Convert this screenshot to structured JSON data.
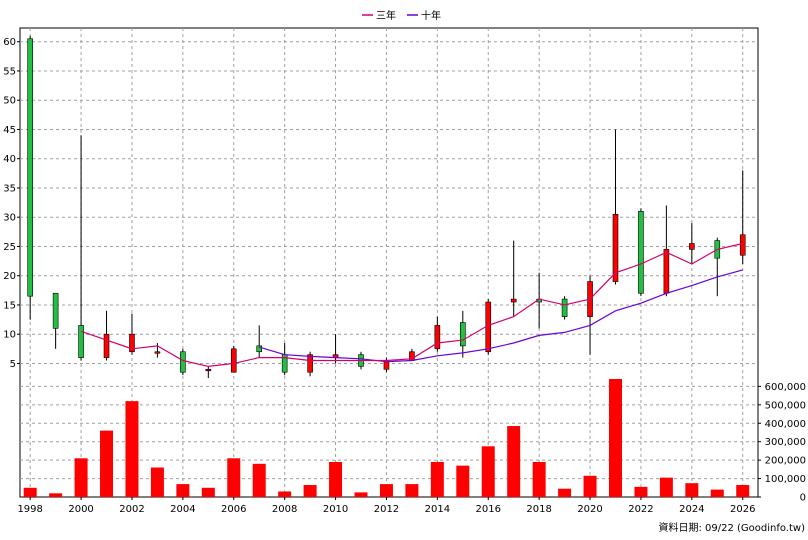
{
  "legend": {
    "ma3_label": "三年",
    "ma10_label": "十年",
    "ma3_color": "#d4006a",
    "ma10_color": "#6a00d4"
  },
  "footer": {
    "source": "資料日期: 09/22  (Goodinfo.tw)"
  },
  "colors": {
    "up": "#ff0000",
    "down": "#22c040",
    "volume": "#ff0000",
    "grid": "#a0a0a0"
  },
  "chart_data": {
    "type": "candlestick",
    "price_axis": {
      "min": 2,
      "max": 62,
      "ticks": [
        5,
        10,
        15,
        20,
        25,
        30,
        35,
        40,
        45,
        50,
        55,
        60
      ],
      "side": "left"
    },
    "volume_axis": {
      "min": 0,
      "max": 640000,
      "ticks": [
        0,
        100000,
        200000,
        300000,
        400000,
        500000,
        600000
      ],
      "tick_labels": [
        "0",
        "100,000",
        "200,000",
        "300,000",
        "400,000",
        "500,000",
        "600,000"
      ],
      "side": "right"
    },
    "x_axis": {
      "min": 1997.6,
      "max": 2026.6,
      "ticks": [
        1998,
        2000,
        2002,
        2004,
        2006,
        2008,
        2010,
        2012,
        2014,
        2016,
        2018,
        2020,
        2022,
        2024,
        2026
      ]
    },
    "grid": true,
    "legend_position": "top-center",
    "candles": [
      {
        "year": 1998,
        "open": 60.5,
        "high": 61,
        "low": 12.5,
        "close": 16.5
      },
      {
        "year": 1999,
        "open": 17,
        "high": 17,
        "low": 7.5,
        "close": 11
      },
      {
        "year": 2000,
        "open": 11.5,
        "high": 44,
        "low": 5.5,
        "close": 6
      },
      {
        "year": 2001,
        "open": 6,
        "high": 14,
        "low": 5.5,
        "close": 10
      },
      {
        "year": 2002,
        "open": 7,
        "high": 13.5,
        "low": 6.5,
        "close": 10
      },
      {
        "year": 2003,
        "open": 7,
        "high": 8.5,
        "low": 6,
        "close": 7
      },
      {
        "year": 2004,
        "open": 7,
        "high": 7.5,
        "low": 3,
        "close": 3.5
      },
      {
        "year": 2005,
        "open": 4,
        "high": 4.5,
        "low": 2.5,
        "close": 4
      },
      {
        "year": 2006,
        "open": 3.5,
        "high": 8,
        "low": 3.5,
        "close": 7.5
      },
      {
        "year": 2007,
        "open": 8,
        "high": 11.5,
        "low": 6,
        "close": 7
      },
      {
        "year": 2008,
        "open": 6.5,
        "high": 8.5,
        "low": 3,
        "close": 3.5
      },
      {
        "year": 2009,
        "open": 3.5,
        "high": 7,
        "low": 2.8,
        "close": 6.5
      },
      {
        "year": 2010,
        "open": 6,
        "high": 10,
        "low": 5,
        "close": 6.5
      },
      {
        "year": 2011,
        "open": 6.5,
        "high": 7,
        "low": 4,
        "close": 4.5
      },
      {
        "year": 2012,
        "open": 4,
        "high": 6,
        "low": 3.5,
        "close": 5.5
      },
      {
        "year": 2013,
        "open": 5.5,
        "high": 7.5,
        "low": 5.5,
        "close": 7
      },
      {
        "year": 2014,
        "open": 7.5,
        "high": 13,
        "low": 7,
        "close": 11.5
      },
      {
        "year": 2015,
        "open": 12,
        "high": 14,
        "low": 6,
        "close": 8
      },
      {
        "year": 2016,
        "open": 7,
        "high": 16,
        "low": 6.5,
        "close": 15.5
      },
      {
        "year": 2017,
        "open": 15.5,
        "high": 26,
        "low": 13,
        "close": 16
      },
      {
        "year": 2018,
        "open": 16,
        "high": 20.5,
        "low": 11,
        "close": 15.5
      },
      {
        "year": 2019,
        "open": 16,
        "high": 16.5,
        "low": 12.5,
        "close": 13
      },
      {
        "year": 2020,
        "open": 13,
        "high": 20,
        "low": 6.5,
        "close": 19
      },
      {
        "year": 2021,
        "open": 19,
        "high": 45,
        "low": 18.5,
        "close": 30.5
      },
      {
        "year": 2022,
        "open": 31,
        "high": 31.5,
        "low": 16.5,
        "close": 17
      },
      {
        "year": 2023,
        "open": 17,
        "high": 32,
        "low": 16.5,
        "close": 24.5
      },
      {
        "year": 2024,
        "open": 24.5,
        "high": 29,
        "low": 22,
        "close": 25.5
      },
      {
        "year": 2025,
        "open": 26,
        "high": 26.5,
        "low": 16.5,
        "close": 23
      },
      {
        "year": 2026,
        "open": 23.5,
        "high": 38,
        "low": 22,
        "close": 27
      }
    ],
    "ma3": [
      {
        "year": 2000,
        "value": 10.5
      },
      {
        "year": 2001,
        "value": 9
      },
      {
        "year": 2002,
        "value": 7.5
      },
      {
        "year": 2003,
        "value": 8
      },
      {
        "year": 2004,
        "value": 5.5
      },
      {
        "year": 2005,
        "value": 4.5
      },
      {
        "year": 2006,
        "value": 5
      },
      {
        "year": 2007,
        "value": 6
      },
      {
        "year": 2008,
        "value": 6
      },
      {
        "year": 2009,
        "value": 5.5
      },
      {
        "year": 2010,
        "value": 5.5
      },
      {
        "year": 2011,
        "value": 5.5
      },
      {
        "year": 2012,
        "value": 5.5
      },
      {
        "year": 2013,
        "value": 5.8
      },
      {
        "year": 2014,
        "value": 8.5
      },
      {
        "year": 2015,
        "value": 9
      },
      {
        "year": 2016,
        "value": 11.5
      },
      {
        "year": 2017,
        "value": 13
      },
      {
        "year": 2018,
        "value": 16
      },
      {
        "year": 2019,
        "value": 15
      },
      {
        "year": 2020,
        "value": 16
      },
      {
        "year": 2021,
        "value": 20.5
      },
      {
        "year": 2022,
        "value": 22
      },
      {
        "year": 2023,
        "value": 24
      },
      {
        "year": 2024,
        "value": 22
      },
      {
        "year": 2025,
        "value": 24.5
      },
      {
        "year": 2026,
        "value": 25.5
      }
    ],
    "ma10": [
      {
        "year": 2007,
        "value": 7.8
      },
      {
        "year": 2008,
        "value": 6.5
      },
      {
        "year": 2009,
        "value": 6.2
      },
      {
        "year": 2010,
        "value": 6
      },
      {
        "year": 2011,
        "value": 5.8
      },
      {
        "year": 2012,
        "value": 5.3
      },
      {
        "year": 2013,
        "value": 5.5
      },
      {
        "year": 2014,
        "value": 6.3
      },
      {
        "year": 2015,
        "value": 6.8
      },
      {
        "year": 2016,
        "value": 7.5
      },
      {
        "year": 2017,
        "value": 8.5
      },
      {
        "year": 2018,
        "value": 9.8
      },
      {
        "year": 2019,
        "value": 10.3
      },
      {
        "year": 2020,
        "value": 11.5
      },
      {
        "year": 2021,
        "value": 14
      },
      {
        "year": 2022,
        "value": 15.3
      },
      {
        "year": 2023,
        "value": 17
      },
      {
        "year": 2024,
        "value": 18.3
      },
      {
        "year": 2025,
        "value": 19.8
      },
      {
        "year": 2026,
        "value": 21
      }
    ],
    "volume": [
      {
        "year": 1998,
        "value": 50000
      },
      {
        "year": 1999,
        "value": 20000
      },
      {
        "year": 2000,
        "value": 210000
      },
      {
        "year": 2001,
        "value": 360000
      },
      {
        "year": 2002,
        "value": 520000
      },
      {
        "year": 2003,
        "value": 160000
      },
      {
        "year": 2004,
        "value": 70000
      },
      {
        "year": 2005,
        "value": 50000
      },
      {
        "year": 2006,
        "value": 210000
      },
      {
        "year": 2007,
        "value": 180000
      },
      {
        "year": 2008,
        "value": 30000
      },
      {
        "year": 2009,
        "value": 65000
      },
      {
        "year": 2010,
        "value": 190000
      },
      {
        "year": 2011,
        "value": 25000
      },
      {
        "year": 2012,
        "value": 70000
      },
      {
        "year": 2013,
        "value": 70000
      },
      {
        "year": 2014,
        "value": 190000
      },
      {
        "year": 2015,
        "value": 170000
      },
      {
        "year": 2016,
        "value": 275000
      },
      {
        "year": 2017,
        "value": 385000
      },
      {
        "year": 2018,
        "value": 190000
      },
      {
        "year": 2019,
        "value": 45000
      },
      {
        "year": 2020,
        "value": 115000
      },
      {
        "year": 2021,
        "value": 640000
      },
      {
        "year": 2022,
        "value": 55000
      },
      {
        "year": 2023,
        "value": 105000
      },
      {
        "year": 2024,
        "value": 75000
      },
      {
        "year": 2025,
        "value": 40000
      },
      {
        "year": 2026,
        "value": 65000
      }
    ]
  }
}
